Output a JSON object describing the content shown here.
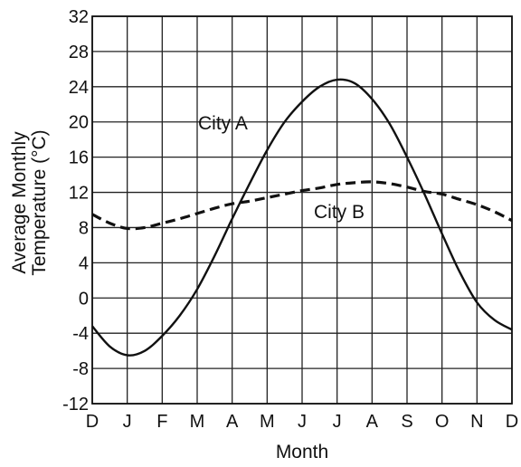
{
  "chart_data": {
    "type": "line",
    "title": "",
    "xlabel": "Month",
    "ylabel_lines": [
      "Average Monthly",
      "Temperature (°C)"
    ],
    "x_ticks": [
      "D",
      "J",
      "F",
      "M",
      "A",
      "M",
      "J",
      "J",
      "A",
      "S",
      "O",
      "N",
      "D"
    ],
    "ylim": [
      -12,
      32
    ],
    "y_ticks": [
      32,
      28,
      24,
      20,
      16,
      12,
      8,
      4,
      0,
      -4,
      -8,
      -12
    ],
    "grid": true,
    "series": [
      {
        "name": "City A",
        "style": "solid",
        "color": "#111111",
        "x": [
          0,
          0.5,
          1,
          1.5,
          2,
          2.5,
          3,
          3.5,
          4,
          4.5,
          5,
          5.5,
          6,
          6.5,
          7,
          7.5,
          8,
          8.5,
          9,
          9.5,
          10,
          10.5,
          11,
          11.5,
          12
        ],
        "values": [
          -3.2,
          -5.5,
          -6.5,
          -6.0,
          -4.3,
          -2.0,
          1.0,
          4.8,
          9.0,
          13.0,
          16.8,
          20.0,
          22.3,
          24.0,
          24.8,
          24.4,
          22.6,
          19.8,
          16.0,
          11.8,
          7.3,
          3.0,
          -0.5,
          -2.5,
          -3.6
        ]
      },
      {
        "name": "City B",
        "style": "dashed",
        "color": "#111111",
        "x": [
          0,
          0.5,
          1,
          1.5,
          2,
          2.5,
          3,
          3.5,
          4,
          4.5,
          5,
          5.5,
          6,
          6.5,
          7,
          7.5,
          8,
          8.5,
          9,
          9.5,
          10,
          10.5,
          11,
          11.5,
          12
        ],
        "values": [
          9.5,
          8.5,
          7.9,
          8.0,
          8.5,
          9.0,
          9.6,
          10.2,
          10.7,
          11.0,
          11.4,
          11.8,
          12.2,
          12.5,
          12.9,
          13.1,
          13.2,
          13.0,
          12.6,
          12.1,
          11.8,
          11.2,
          10.6,
          9.8,
          8.8
        ]
      }
    ]
  }
}
